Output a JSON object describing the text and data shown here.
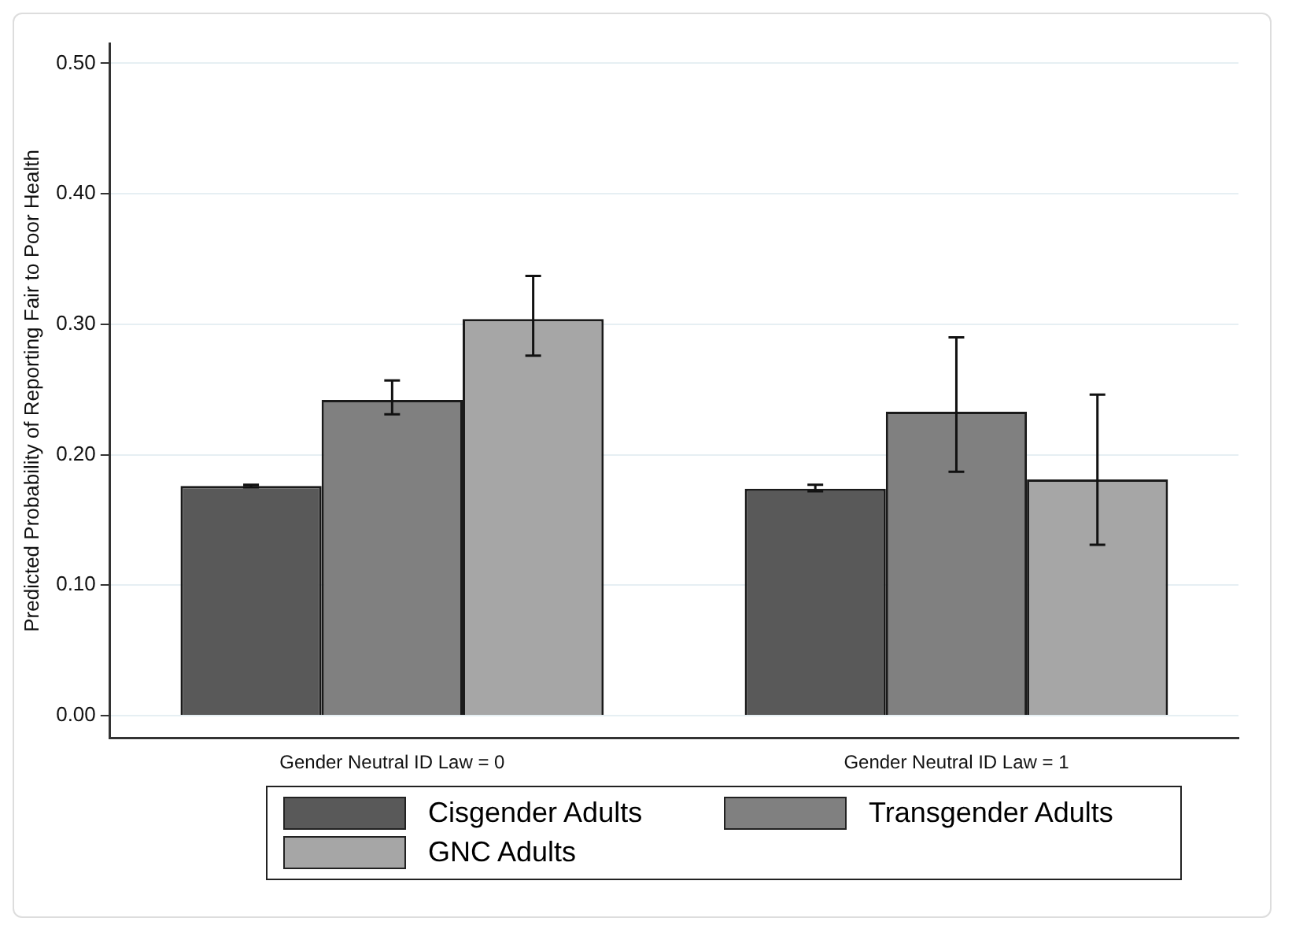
{
  "chart_data": {
    "type": "bar",
    "ylabel": "Predicted Probability of Reporting Fair to Poor Health",
    "categories": [
      "Gender Neutral ID Law = 0",
      "Gender Neutral ID Law = 1"
    ],
    "series": [
      {
        "name": "Cisgender Adults",
        "color": "#595959",
        "values": [
          0.176,
          0.174
        ],
        "errors": [
          [
            0.175,
            0.177
          ],
          [
            0.172,
            0.177
          ]
        ]
      },
      {
        "name": "Transgender Adults",
        "color": "#808080",
        "values": [
          0.242,
          0.233
        ],
        "errors": [
          [
            0.231,
            0.257
          ],
          [
            0.187,
            0.29
          ]
        ]
      },
      {
        "name": "GNC Adults",
        "color": "#a6a6a6",
        "values": [
          0.304,
          0.181
        ],
        "errors": [
          [
            0.276,
            0.337
          ],
          [
            0.131,
            0.246
          ]
        ]
      }
    ],
    "ylim": [
      -0.017,
      0.515
    ],
    "yticks": [
      {
        "value": 0,
        "label": "0.00"
      },
      {
        "value": 0.1,
        "label": "0.10"
      },
      {
        "value": 0.2,
        "label": "0.20"
      },
      {
        "value": 0.3,
        "label": "0.30"
      },
      {
        "value": 0.4,
        "label": "0.40"
      },
      {
        "value": 0.5,
        "label": "0.50"
      }
    ],
    "grid": "y",
    "legend": "bottom"
  }
}
